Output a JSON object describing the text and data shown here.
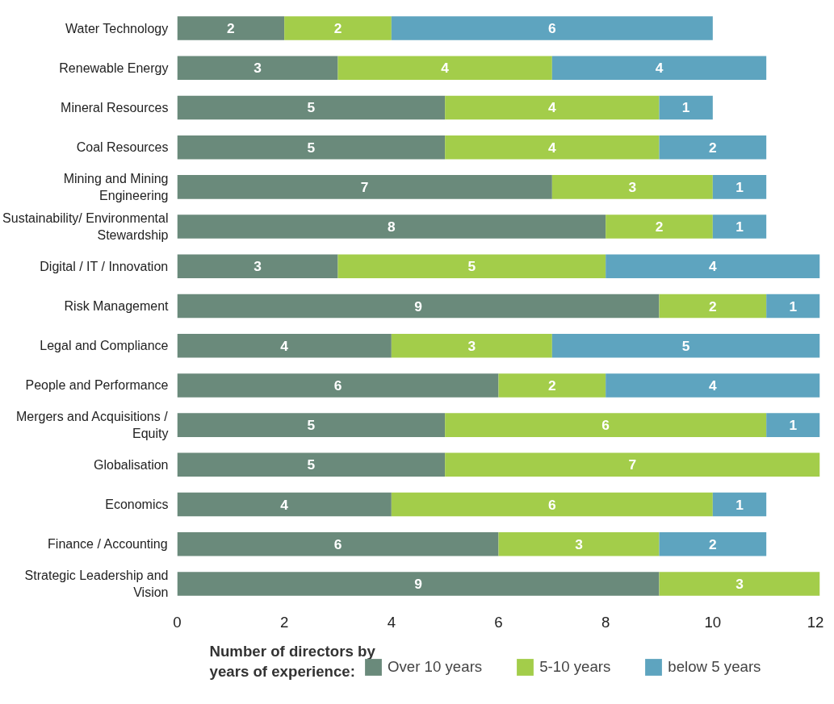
{
  "chart_data": {
    "type": "bar",
    "orientation": "horizontal",
    "stacked": true,
    "data_labels": true,
    "grid": false,
    "legend": "bottom",
    "legend_title": "Number of directors by years of experience:",
    "categories": [
      "Water Technology",
      "Renewable Energy",
      "Mineral Resources",
      "Coal Resources",
      "Mining and Mining\nEngineering",
      "Sustainability/ Environmental\nStewardship",
      "Digital / IT / Innovation",
      "Risk Management",
      "Legal and Compliance",
      "People and Performance",
      "Mergers and Acquisitions /\nEquity",
      "Globalisation",
      "Economics",
      "Finance / Accounting",
      "Strategic Leadership and\nVision"
    ],
    "series": [
      {
        "name": "Over 10 years",
        "color": "#6a8a7b",
        "values": [
          2,
          3,
          5,
          5,
          7,
          8,
          3,
          9,
          4,
          6,
          5,
          5,
          4,
          6,
          9
        ]
      },
      {
        "name": "5-10 years",
        "color": "#a3cd4a",
        "values": [
          2,
          4,
          4,
          4,
          3,
          2,
          5,
          2,
          3,
          2,
          6,
          7,
          6,
          3,
          3
        ]
      },
      {
        "name": "below 5 years",
        "color": "#5ea4bf",
        "values": [
          6,
          4,
          1,
          2,
          1,
          1,
          4,
          1,
          5,
          4,
          1,
          null,
          1,
          2,
          null
        ]
      }
    ],
    "xlim": [
      0,
      12
    ],
    "xticks": [
      0,
      2,
      4,
      6,
      8,
      10,
      12
    ]
  }
}
